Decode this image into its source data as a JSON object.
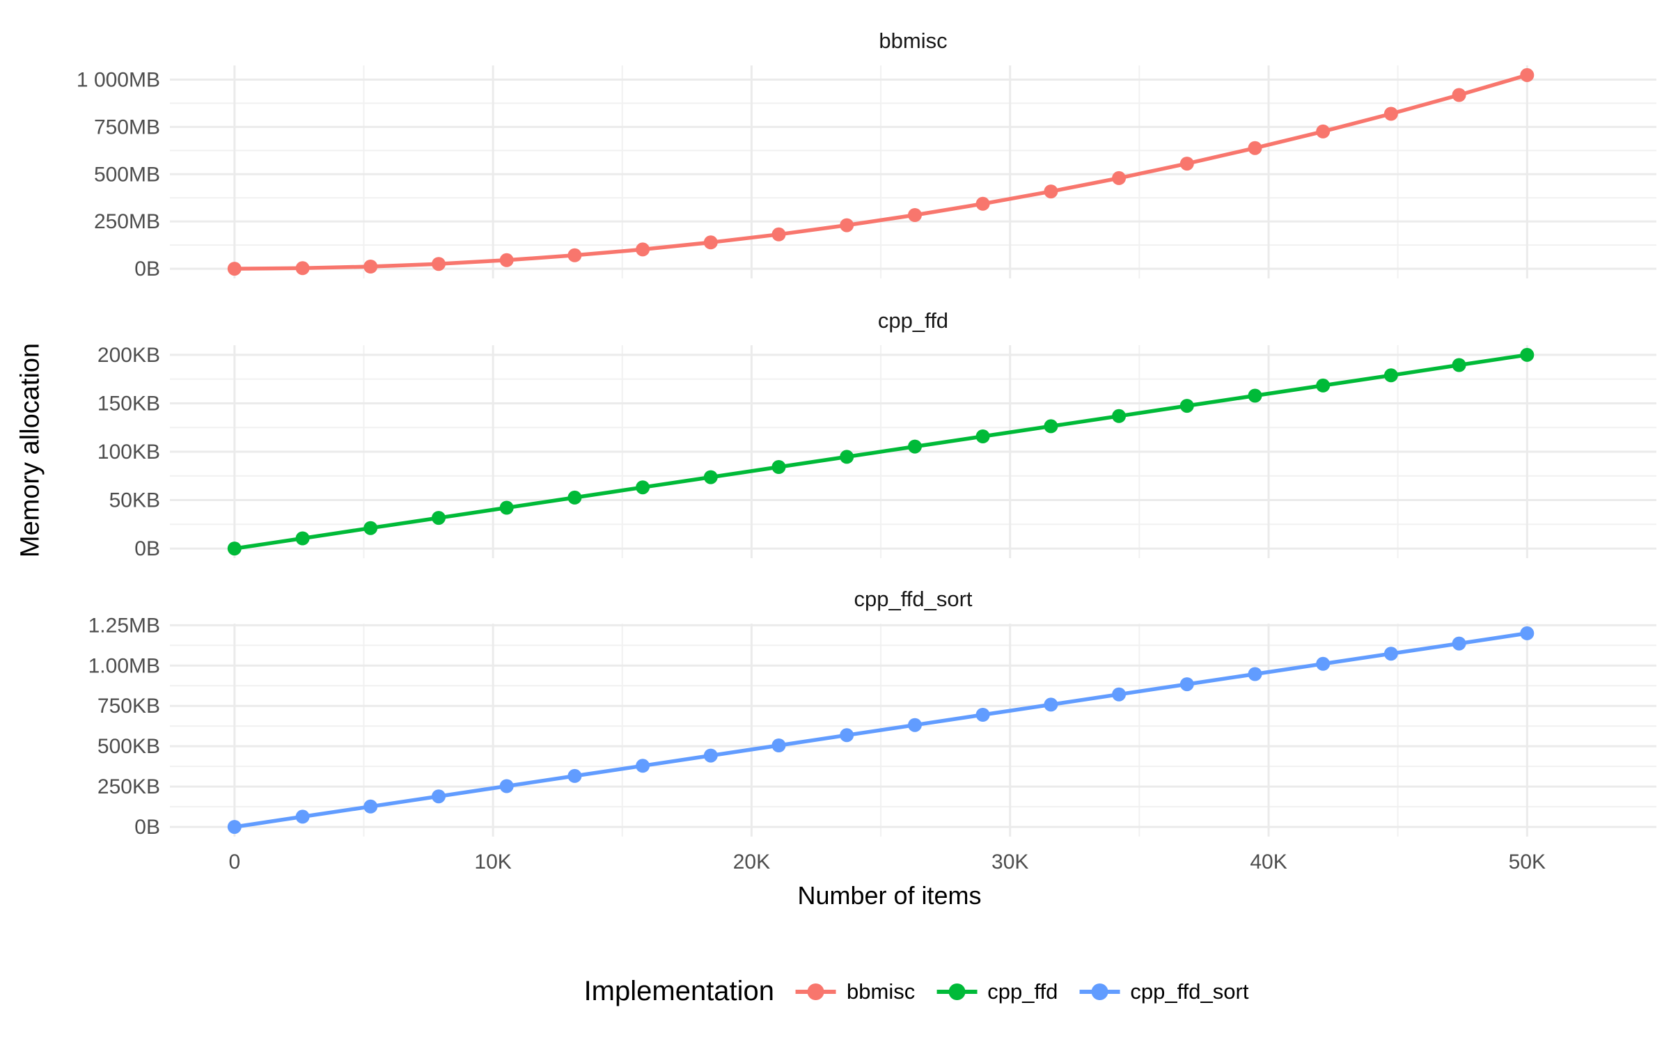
{
  "chart_data": {
    "type": "line",
    "title": "",
    "xlabel": "Number of items",
    "ylabel": "Memory allocation",
    "legend_title": "Implementation",
    "legend_position": "bottom",
    "grid": true,
    "xlim": [
      -2500,
      55000
    ],
    "x": [
      0,
      2632,
      5263,
      7895,
      10526,
      13158,
      15789,
      18421,
      21053,
      23684,
      26316,
      28947,
      31579,
      34211,
      36842,
      39474,
      42105,
      44737,
      47368,
      50000
    ],
    "x_ticks": [
      {
        "v": 0,
        "label": "0"
      },
      {
        "v": 10000,
        "label": "10K"
      },
      {
        "v": 20000,
        "label": "20K"
      },
      {
        "v": 30000,
        "label": "30K"
      },
      {
        "v": 40000,
        "label": "40K"
      },
      {
        "v": 50000,
        "label": "50K"
      }
    ],
    "x_minor": [
      5000,
      15000,
      25000,
      35000,
      45000
    ],
    "facets": [
      {
        "title": "bbmisc",
        "color": "#F8766D",
        "unit": "MB",
        "ymax": 1024,
        "values": [
          0,
          2.8,
          11.3,
          25.5,
          45.4,
          70.9,
          102.1,
          139.0,
          181.6,
          229.9,
          283.7,
          343.3,
          408.5,
          479.4,
          555.9,
          638.1,
          725.9,
          819.5,
          918.6,
          1024.0
        ],
        "y_ticks": [
          {
            "v": 0,
            "label": "0B"
          },
          {
            "v": 250,
            "label": "250MB"
          },
          {
            "v": 500,
            "label": "500MB"
          },
          {
            "v": 750,
            "label": "750MB"
          },
          {
            "v": 1000,
            "label": "1 000MB"
          }
        ],
        "y_minor": [
          125,
          375,
          625,
          875
        ]
      },
      {
        "title": "cpp_ffd",
        "color": "#00BA38",
        "unit": "KB",
        "ymax": 200,
        "values": [
          0,
          10.5,
          21.1,
          31.6,
          42.1,
          52.6,
          63.2,
          73.7,
          84.2,
          94.7,
          105.3,
          115.8,
          126.3,
          136.8,
          147.4,
          157.9,
          168.4,
          178.9,
          189.5,
          200.0
        ],
        "y_ticks": [
          {
            "v": 0,
            "label": "0B"
          },
          {
            "v": 50,
            "label": "50KB"
          },
          {
            "v": 100,
            "label": "100KB"
          },
          {
            "v": 150,
            "label": "150KB"
          },
          {
            "v": 200,
            "label": "200KB"
          }
        ],
        "y_minor": [
          25,
          75,
          125,
          175
        ]
      },
      {
        "title": "cpp_ffd_sort",
        "color": "#619CFF",
        "unit": "KB",
        "ymax": 1200,
        "values": [
          0,
          63.2,
          126.3,
          189.5,
          252.6,
          315.8,
          378.9,
          442.1,
          505.3,
          568.4,
          631.6,
          694.7,
          757.9,
          821.1,
          884.2,
          947.4,
          1010.5,
          1073.7,
          1136.8,
          1200.0
        ],
        "y_ticks": [
          {
            "v": 0,
            "label": "0B"
          },
          {
            "v": 250,
            "label": "250KB"
          },
          {
            "v": 500,
            "label": "500KB"
          },
          {
            "v": 750,
            "label": "750KB"
          },
          {
            "v": 1000,
            "label": "1.00MB"
          },
          {
            "v": 1250,
            "label": "1.25MB"
          }
        ],
        "y_minor": [
          125,
          375,
          625,
          875,
          1125
        ]
      }
    ],
    "legend": [
      {
        "label": "bbmisc",
        "color": "#F8766D"
      },
      {
        "label": "cpp_ffd",
        "color": "#00BA38"
      },
      {
        "label": "cpp_ffd_sort",
        "color": "#619CFF"
      }
    ]
  },
  "colors": {
    "background": "#FFFFFF",
    "grid_major": "#EBEBEB",
    "grid_minor": "#F1F1F1",
    "tick_text": "#4D4D4D",
    "title_text": "#000000",
    "series_red": "#F8766D",
    "series_green": "#00BA38",
    "series_blue": "#619CFF"
  }
}
